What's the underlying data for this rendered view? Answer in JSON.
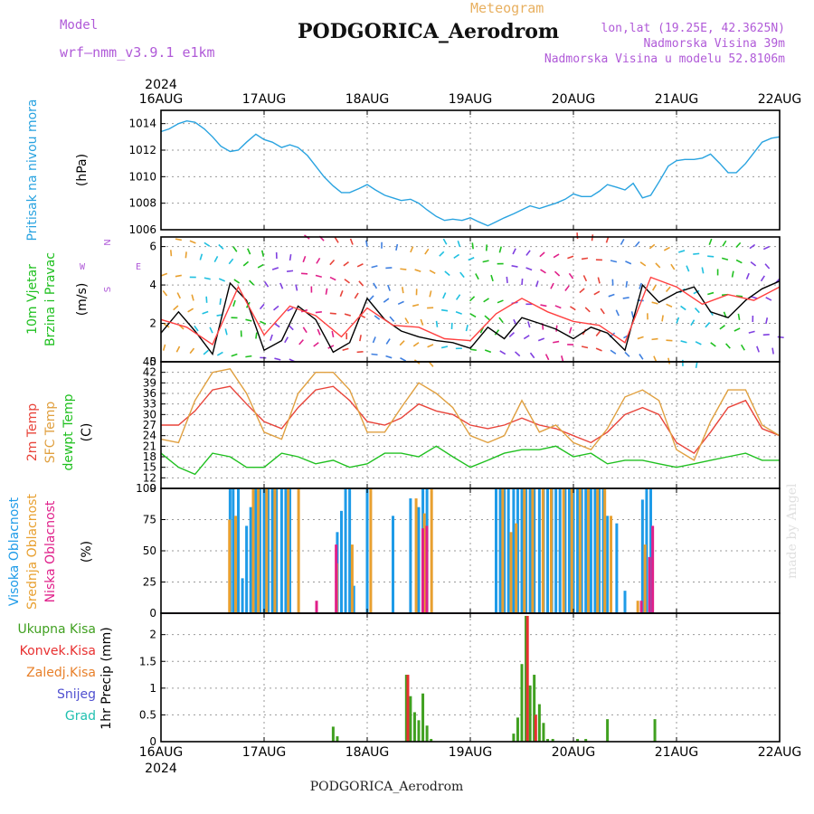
{
  "header": {
    "model_label": "Model",
    "model_name": "wrf—nmm_v3.9.1  e1km",
    "product": "Meteogram",
    "station": "PODGORICA_Aerodrom",
    "lonlat": "lon,lat (19.25E, 42.3625N)",
    "elevation": "Nadmorska Visina 39m",
    "model_elevation": "Nadmorska Visina u modelu 52.8106m",
    "year": "2024",
    "credit": "made by Angel",
    "footer": "PODGORICA_Aerodrom"
  },
  "colors": {
    "pressure": "#29a3e0",
    "temp2m": "#e8443a",
    "sfc": "#e0a040",
    "dew": "#20c020",
    "cloud_high": "#1e9be8",
    "cloud_mid": "#e8a030",
    "cloud_low": "#e0208a",
    "rain_total": "#40a020",
    "rain_conv": "#e83030",
    "rain_strat": "#e8802a",
    "snow": "#5050d0",
    "hail": "#20c0b0",
    "wind_speed": "#000000",
    "gust": "#ff4040"
  },
  "chart_data": [
    {
      "type": "line",
      "panel": "pressure",
      "ylabel": "Pritisak na nivou mora",
      "unit": "(hPa)",
      "ylim": [
        1006,
        1015
      ],
      "yticks": [
        1006,
        1008,
        1010,
        1012,
        1014
      ],
      "x_range": [
        0,
        6
      ],
      "x_ticks": [
        "16AUG",
        "17AUG",
        "18AUG",
        "19AUG",
        "20AUG",
        "21AUG",
        "22AUG"
      ],
      "grid": true,
      "series": [
        {
          "color": "#29a3e0",
          "x": [
            0,
            0.08,
            0.17,
            0.25,
            0.33,
            0.42,
            0.5,
            0.58,
            0.67,
            0.75,
            0.83,
            0.92,
            1.0,
            1.08,
            1.17,
            1.25,
            1.33,
            1.42,
            1.5,
            1.58,
            1.67,
            1.75,
            1.83,
            1.92,
            2.0,
            2.08,
            2.17,
            2.25,
            2.33,
            2.42,
            2.5,
            2.58,
            2.67,
            2.75,
            2.83,
            2.92,
            3.0,
            3.08,
            3.17,
            3.25,
            3.33,
            3.42,
            3.5,
            3.58,
            3.67,
            3.75,
            3.83,
            3.92,
            4.0,
            4.08,
            4.17,
            4.25,
            4.33,
            4.42,
            4.5,
            4.58,
            4.67,
            4.75,
            4.83,
            4.92,
            5.0,
            5.08,
            5.17,
            5.25,
            5.33,
            5.42,
            5.5,
            5.58,
            5.67,
            5.75,
            5.83,
            5.92,
            6.0
          ],
          "y": [
            1013.4,
            1013.6,
            1014.0,
            1014.2,
            1014.1,
            1013.6,
            1013.0,
            1012.3,
            1011.9,
            1012.0,
            1012.6,
            1013.2,
            1012.8,
            1012.6,
            1012.2,
            1012.4,
            1012.2,
            1011.6,
            1010.8,
            1010.0,
            1009.3,
            1008.8,
            1008.8,
            1009.1,
            1009.4,
            1009.0,
            1008.6,
            1008.4,
            1008.2,
            1008.3,
            1008.0,
            1007.5,
            1007.0,
            1006.7,
            1006.8,
            1006.7,
            1006.9,
            1006.6,
            1006.3,
            1006.6,
            1006.9,
            1007.2,
            1007.5,
            1007.8,
            1007.6,
            1007.8,
            1008.0,
            1008.3,
            1008.7,
            1008.5,
            1008.5,
            1008.9,
            1009.4,
            1009.2,
            1009.0,
            1009.5,
            1008.4,
            1008.6,
            1009.6,
            1010.8,
            1011.2,
            1011.3,
            1011.3,
            1011.4,
            1011.7,
            1011.0,
            1010.3,
            1010.3,
            1011.0,
            1011.8,
            1012.6,
            1012.9,
            1013.0
          ]
        }
      ]
    },
    {
      "type": "line",
      "panel": "wind",
      "ylabel": [
        "10m Vjetar",
        "Brzina i Pravac"
      ],
      "unit": "(m/s)",
      "ylim": [
        0,
        6.5
      ],
      "yticks": [
        0,
        2,
        4,
        6
      ],
      "direction_key": [
        "N",
        "S",
        "W",
        "E"
      ],
      "series": [
        {
          "name": "speed",
          "color": "#000000",
          "x": [
            0,
            0.17,
            0.33,
            0.5,
            0.67,
            0.83,
            1.0,
            1.17,
            1.33,
            1.5,
            1.67,
            1.83,
            2.0,
            2.17,
            2.33,
            2.5,
            2.67,
            2.83,
            3.0,
            3.17,
            3.33,
            3.5,
            3.67,
            3.83,
            4.0,
            4.17,
            4.33,
            4.5,
            4.67,
            4.83,
            5.0,
            5.17,
            5.33,
            5.5,
            5.67,
            5.83,
            6.0
          ],
          "y": [
            1.5,
            2.6,
            1.6,
            0.4,
            4.1,
            3.2,
            0.6,
            1.1,
            2.9,
            2.2,
            0.5,
            1.0,
            3.3,
            2.2,
            1.6,
            1.3,
            1.1,
            1.0,
            0.7,
            1.8,
            1.2,
            2.3,
            2.0,
            1.7,
            1.2,
            1.8,
            1.5,
            0.6,
            4.0,
            3.1,
            3.6,
            3.9,
            2.6,
            2.3,
            3.2,
            3.8,
            4.2
          ]
        },
        {
          "name": "gust",
          "color": "#ff4040",
          "x": [
            0,
            0.25,
            0.5,
            0.75,
            1.0,
            1.25,
            1.5,
            1.75,
            2.0,
            2.25,
            2.5,
            2.75,
            3.0,
            3.25,
            3.5,
            3.75,
            4.0,
            4.25,
            4.5,
            4.75,
            5.0,
            5.25,
            5.5,
            5.75,
            6.0
          ],
          "y": [
            2.2,
            1.8,
            0.9,
            3.9,
            1.4,
            2.9,
            2.4,
            1.3,
            2.8,
            1.9,
            1.8,
            1.2,
            1.1,
            2.5,
            3.3,
            2.6,
            2.1,
            1.9,
            1.0,
            4.4,
            3.9,
            3.0,
            3.5,
            3.2,
            3.9
          ]
        }
      ]
    },
    {
      "type": "line",
      "panel": "temperature",
      "ylabel": [
        "2m Temp",
        "SFC Temp",
        "dewpt Temp"
      ],
      "unit": "(C)",
      "ylim": [
        9,
        45
      ],
      "yticks": [
        9,
        12,
        15,
        18,
        21,
        24,
        27,
        30,
        33,
        36,
        39,
        42,
        45
      ],
      "series": [
        {
          "name": "2m Temp",
          "color": "#e8443a",
          "x": [
            0,
            0.17,
            0.33,
            0.5,
            0.67,
            0.83,
            1.0,
            1.17,
            1.33,
            1.5,
            1.67,
            1.83,
            2.0,
            2.17,
            2.33,
            2.5,
            2.67,
            2.83,
            3.0,
            3.17,
            3.33,
            3.5,
            3.67,
            3.83,
            4.0,
            4.17,
            4.33,
            4.5,
            4.67,
            4.83,
            5.0,
            5.17,
            5.33,
            5.5,
            5.67,
            5.83,
            6.0
          ],
          "y": [
            27,
            27,
            31,
            37,
            38,
            33,
            28,
            26,
            32,
            37,
            38,
            34,
            28,
            27,
            29,
            33,
            31,
            30,
            27,
            26,
            27,
            29,
            27,
            26,
            24,
            22,
            25,
            30,
            32,
            30,
            22,
            19,
            25,
            32,
            34,
            26,
            24
          ]
        },
        {
          "name": "SFC Temp",
          "color": "#e0a040",
          "x": [
            0,
            0.17,
            0.33,
            0.5,
            0.67,
            0.83,
            1.0,
            1.17,
            1.33,
            1.5,
            1.67,
            1.83,
            2.0,
            2.17,
            2.33,
            2.5,
            2.67,
            2.83,
            3.0,
            3.17,
            3.33,
            3.5,
            3.67,
            3.83,
            4.0,
            4.17,
            4.33,
            4.5,
            4.67,
            4.83,
            5.0,
            5.17,
            5.33,
            5.5,
            5.67,
            5.83,
            6.0
          ],
          "y": [
            23,
            22,
            34,
            42,
            43,
            36,
            25,
            23,
            36,
            42,
            42,
            37,
            25,
            25,
            32,
            39,
            36,
            32,
            24,
            22,
            24,
            34,
            25,
            27,
            22,
            20,
            26,
            35,
            37,
            34,
            20,
            17,
            28,
            37,
            37,
            27,
            24
          ]
        },
        {
          "name": "dewpt Temp",
          "color": "#20c020",
          "x": [
            0,
            0.17,
            0.33,
            0.5,
            0.67,
            0.83,
            1.0,
            1.17,
            1.33,
            1.5,
            1.67,
            1.83,
            2.0,
            2.17,
            2.33,
            2.5,
            2.67,
            2.83,
            3.0,
            3.17,
            3.33,
            3.5,
            3.67,
            3.83,
            4.0,
            4.17,
            4.33,
            4.5,
            4.67,
            4.83,
            5.0,
            5.17,
            5.33,
            5.5,
            5.67,
            5.83,
            6.0
          ],
          "y": [
            19,
            15,
            13,
            19,
            18,
            15,
            15,
            19,
            18,
            16,
            17,
            15,
            16,
            19,
            19,
            18,
            21,
            18,
            15,
            17,
            19,
            20,
            20,
            21,
            18,
            19,
            16,
            17,
            17,
            16,
            15,
            16,
            17,
            18,
            19,
            17,
            17
          ]
        }
      ]
    },
    {
      "type": "bar",
      "panel": "clouds",
      "ylabel": [
        "Visoka Oblacnost",
        "Srednja Oblacnost",
        "Niska Oblacnost"
      ],
      "unit": "(%)",
      "ylim": [
        0,
        100
      ],
      "yticks": [
        0,
        25,
        50,
        75,
        100
      ],
      "series": [
        {
          "name": "Visoka Oblacnost",
          "color": "#1e9be8",
          "x": [
            0.67,
            0.7,
            0.75,
            0.79,
            0.83,
            0.87,
            0.92,
            0.96,
            1.0,
            1.04,
            1.08,
            1.12,
            1.17,
            1.21,
            1.25,
            1.71,
            1.75,
            1.79,
            1.83,
            1.87,
            2.0,
            2.25,
            2.42,
            2.5,
            2.54,
            2.58,
            3.25,
            3.29,
            3.33,
            3.37,
            3.42,
            3.46,
            3.5,
            3.54,
            3.58,
            3.62,
            3.67,
            3.71,
            3.75,
            3.79,
            3.83,
            3.87,
            3.92,
            3.96,
            4.0,
            4.04,
            4.08,
            4.12,
            4.17,
            4.21,
            4.25,
            4.29,
            4.33,
            4.42,
            4.5,
            4.67,
            4.71,
            4.75
          ],
          "y": [
            100,
            100,
            100,
            28,
            70,
            85,
            100,
            100,
            100,
            100,
            100,
            100,
            100,
            100,
            100,
            65,
            82,
            100,
            100,
            22,
            100,
            78,
            92,
            85,
            100,
            100,
            100,
            100,
            100,
            100,
            100,
            100,
            100,
            100,
            100,
            100,
            100,
            100,
            100,
            100,
            100,
            100,
            100,
            100,
            100,
            100,
            100,
            100,
            100,
            100,
            100,
            100,
            78,
            72,
            18,
            91,
            100,
            100
          ]
        },
        {
          "name": "Srednja Oblacnost",
          "color": "#e8a030",
          "x": [
            0.66,
            0.72,
            0.89,
            0.94,
            1.02,
            1.1,
            1.23,
            1.33,
            1.7,
            1.85,
            2.03,
            2.47,
            2.55,
            2.62,
            3.31,
            3.39,
            3.44,
            3.52,
            3.6,
            3.7,
            3.78,
            3.9,
            3.98,
            4.06,
            4.14,
            4.23,
            4.3,
            4.36,
            4.62,
            4.69
          ],
          "y": [
            75,
            78,
            100,
            100,
            100,
            100,
            100,
            100,
            40,
            55,
            100,
            92,
            80,
            100,
            100,
            65,
            72,
            100,
            100,
            100,
            100,
            100,
            100,
            100,
            100,
            100,
            100,
            78,
            10,
            55
          ]
        },
        {
          "name": "Niska Oblacnost",
          "color": "#e0208a",
          "x": [
            1.5,
            1.69,
            2.53,
            2.57,
            4.65,
            4.73,
            4.76
          ],
          "y": [
            10,
            55,
            68,
            70,
            10,
            45,
            70
          ]
        }
      ]
    },
    {
      "type": "bar",
      "panel": "precipitation",
      "ylabel": "1hr Precip (mm)",
      "legend": [
        "Ukupna Kisa",
        "Konvek.Kisa",
        "Zaledj.Kisa",
        "Snijeg",
        "Grad"
      ],
      "ylim": [
        0,
        2.4
      ],
      "yticks": [
        0,
        0.5,
        1,
        1.5,
        2
      ],
      "series": [
        {
          "name": "Ukupna Kisa",
          "color": "#40a020",
          "x": [
            1.67,
            1.71,
            2.38,
            2.42,
            2.46,
            2.5,
            2.54,
            2.58,
            2.62,
            3.42,
            3.46,
            3.5,
            3.54,
            3.58,
            3.62,
            3.67,
            3.71,
            3.75,
            3.8,
            4.04,
            4.12,
            4.33,
            4.79
          ],
          "y": [
            0.28,
            0.1,
            1.25,
            0.85,
            0.55,
            0.4,
            0.9,
            0.3,
            0.05,
            0.15,
            0.45,
            1.45,
            2.35,
            1.05,
            1.25,
            0.7,
            0.35,
            0.05,
            0.05,
            0.05,
            0.05,
            0.42,
            0.42
          ]
        },
        {
          "name": "Konvek.Kisa",
          "color": "#e83030",
          "x": [
            2.39,
            3.55,
            3.63
          ],
          "y": [
            1.25,
            2.35,
            0.5
          ]
        }
      ]
    }
  ]
}
